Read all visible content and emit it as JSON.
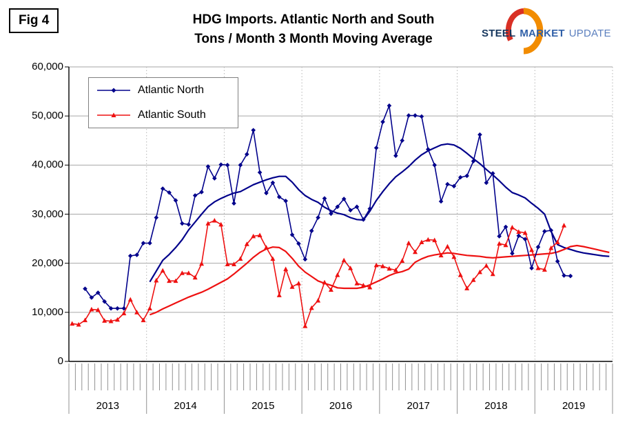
{
  "figure_label": "Fig 4",
  "title": {
    "line1": "HDG Imports. Atlantic North and South",
    "line2": "Tons / Month 3 Month Moving Average"
  },
  "logo": {
    "word1": "STEEL",
    "word2": "MARKET",
    "word3": "UPDATE",
    "accent_orange": "#f28c00",
    "accent_red": "#d93025"
  },
  "legend": {
    "items": [
      {
        "label": "Atlantic North",
        "color": "#00008b",
        "marker": "diamond"
      },
      {
        "label": "Atlantic South",
        "color": "#ee1111",
        "marker": "triangle"
      }
    ]
  },
  "chart_data": {
    "type": "line",
    "title": "HDG Imports. Atlantic North and South — Tons / Month 3 Month Moving Average",
    "xlabel": "",
    "ylabel": "",
    "ylim": [
      0,
      60000
    ],
    "ytick_labels": [
      "0",
      "10,000",
      "20,000",
      "30,000",
      "40,000",
      "50,000",
      "60,000"
    ],
    "x_year_labels": [
      "2013",
      "2014",
      "2015",
      "2016",
      "2017",
      "2018",
      "2019"
    ],
    "x_resolution": "monthly",
    "grid": {
      "horizontal": "solid gray every 10,000",
      "vertical": "dotted gray at year boundaries"
    },
    "legend_position": "top-left inside plot",
    "style": {
      "grid_color": "#a6a6a6",
      "year_line_color": "#b4b4b4",
      "tick_color": "#909090",
      "axis_color": "#000000"
    },
    "series": [
      {
        "name": "Atlantic North",
        "type": "monthly",
        "color": "#00008b",
        "marker": "diamond",
        "start": "2013-03",
        "values": [
          14800,
          13000,
          14000,
          12200,
          10800,
          10800,
          10800,
          21500,
          21700,
          24100,
          24100,
          29300,
          35200,
          34400,
          32800,
          28100,
          27900,
          33800,
          34500,
          39700,
          37300,
          40100,
          40000,
          32200,
          40000,
          42200,
          47100,
          38500,
          34300,
          36400,
          33500,
          32700,
          25800,
          24000,
          20800,
          26600,
          29300,
          33200,
          30100,
          31500,
          33100,
          30800,
          31500,
          28900,
          31100,
          43500,
          48800,
          52100,
          41900,
          45000,
          50100,
          50100,
          49900,
          43200,
          40000,
          32600,
          36100,
          35700,
          37500,
          37800,
          40800,
          46200,
          36400,
          38300,
          25500,
          27400,
          22000,
          25600,
          24900,
          19000,
          23300,
          26500,
          26700,
          20400,
          17500,
          17400
        ]
      },
      {
        "name": "Atlantic South",
        "type": "monthly",
        "color": "#ee1111",
        "marker": "triangle",
        "start": "2013-01",
        "values": [
          7700,
          7500,
          8400,
          10600,
          10500,
          8300,
          8200,
          8500,
          9800,
          12600,
          10000,
          8400,
          10800,
          16500,
          18500,
          16400,
          16400,
          18000,
          18000,
          17100,
          19900,
          28100,
          28700,
          27900,
          19800,
          19800,
          20900,
          23900,
          25500,
          25700,
          23200,
          20900,
          13500,
          18800,
          15200,
          15900,
          7200,
          10900,
          12400,
          16100,
          14600,
          17600,
          20600,
          19000,
          15900,
          15500,
          15100,
          19600,
          19400,
          18900,
          18600,
          20500,
          24100,
          22300,
          24300,
          24800,
          24700,
          21600,
          23400,
          21300,
          17600,
          14900,
          16600,
          18200,
          19500,
          17800,
          24000,
          23700,
          27300,
          26400,
          26200,
          22700,
          19000,
          18700,
          23100,
          24300,
          27700
        ]
      },
      {
        "name": "Atlantic North trend (moving average)",
        "type": "smooth",
        "color": "#00008b",
        "start": "2014-01",
        "values": [
          16200,
          18400,
          20600,
          21800,
          23200,
          24800,
          26800,
          28400,
          30000,
          31500,
          32500,
          33200,
          33800,
          34300,
          34600,
          35300,
          36000,
          36500,
          37000,
          37400,
          37700,
          37700,
          36500,
          35000,
          33800,
          33000,
          32400,
          31400,
          30700,
          30200,
          29900,
          29300,
          28900,
          28800,
          30600,
          32800,
          34600,
          36200,
          37600,
          38600,
          39700,
          41000,
          42100,
          42900,
          43500,
          44100,
          44300,
          44100,
          43400,
          42400,
          41300,
          40300,
          39100,
          38000,
          36800,
          35500,
          34400,
          33900,
          33300,
          32200,
          31200,
          30000,
          26500,
          23800,
          23200,
          22800,
          22400,
          22100,
          21900,
          21700,
          21500,
          21400
        ]
      },
      {
        "name": "Atlantic South trend (moving average)",
        "type": "smooth",
        "color": "#ee1111",
        "start": "2014-01",
        "values": [
          9500,
          10000,
          10700,
          11300,
          11900,
          12500,
          13100,
          13600,
          14100,
          14700,
          15400,
          16100,
          16800,
          17800,
          18900,
          20000,
          21200,
          22200,
          22900,
          23300,
          23200,
          22400,
          21000,
          19400,
          18200,
          17300,
          16400,
          15900,
          15500,
          15000,
          14900,
          14900,
          14900,
          15100,
          15600,
          16200,
          16800,
          17500,
          18000,
          18300,
          18800,
          20200,
          20900,
          21400,
          21700,
          21900,
          22100,
          22000,
          21800,
          21600,
          21500,
          21400,
          21200,
          21100,
          21200,
          21300,
          21400,
          21500,
          21600,
          21700,
          21800,
          21900,
          22000,
          22300,
          22800,
          23400,
          23600,
          23400,
          23100,
          22800,
          22500,
          22200
        ]
      }
    ]
  }
}
